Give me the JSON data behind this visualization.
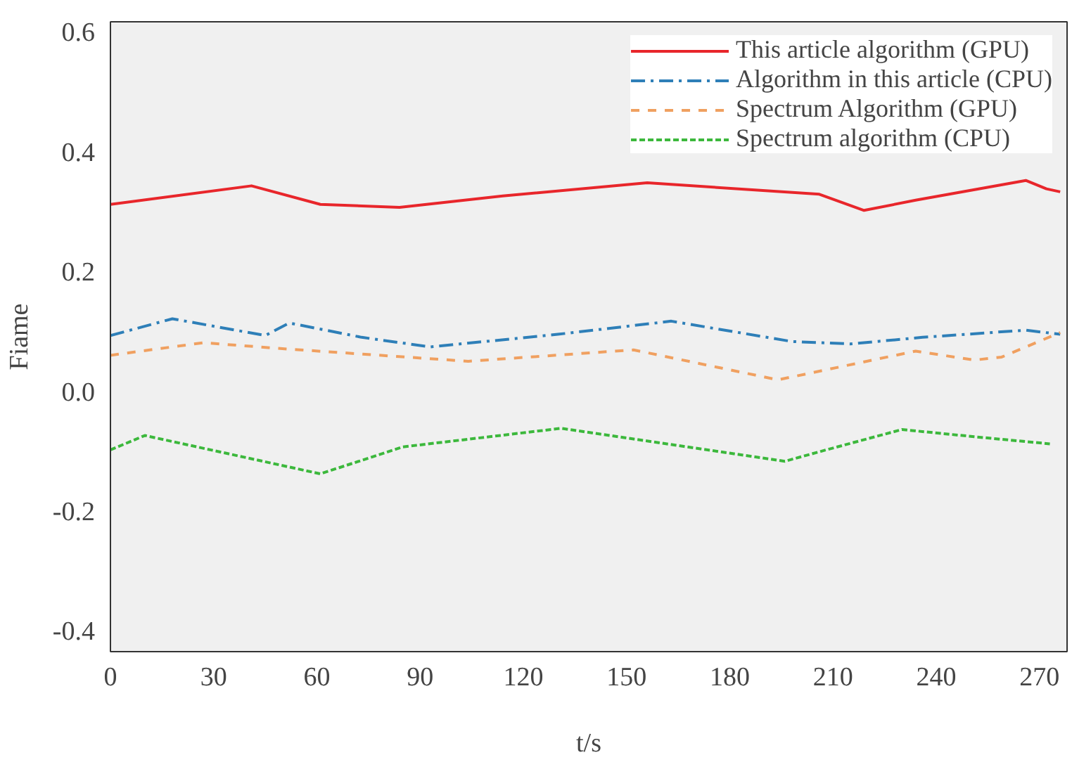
{
  "chart_data": {
    "type": "line",
    "xlabel": "t/s",
    "ylabel": "Fiame",
    "xlim": [
      0,
      278
    ],
    "ylim": [
      -0.435,
      0.617
    ],
    "xticks": [
      0,
      30,
      60,
      90,
      120,
      150,
      180,
      210,
      240,
      270
    ],
    "yticks": [
      {
        "value": 0.6,
        "label": "0.6"
      },
      {
        "value": 0.4,
        "label": "0.4"
      },
      {
        "value": 0.2,
        "label": "0.2"
      },
      {
        "value": 0,
        "label": "0.0"
      },
      {
        "value": -0.2,
        "label": "-0.2"
      },
      {
        "value": -0.4,
        "label": "-0.4"
      }
    ],
    "grid": false,
    "legend": "top right",
    "marker": "none",
    "series": [
      {
        "name": "This article algorithm (GPU)",
        "color": "#e8262b",
        "line_style": "solid",
        "x": [
          0,
          41,
          61,
          84,
          114,
          156,
          206,
          219,
          234,
          266,
          272,
          276
        ],
        "values": [
          0.312,
          0.343,
          0.312,
          0.307,
          0.326,
          0.348,
          0.329,
          0.302,
          0.319,
          0.352,
          0.338,
          0.333
        ]
      },
      {
        "name": "Algorithm in this article (CPU)",
        "color": "#2e7fb8",
        "line_style": "dashdot",
        "x": [
          0,
          18,
          45,
          52,
          73,
          93,
          130,
          163,
          198,
          215,
          236,
          266,
          276
        ],
        "values": [
          0.093,
          0.121,
          0.093,
          0.114,
          0.09,
          0.074,
          0.095,
          0.117,
          0.083,
          0.079,
          0.09,
          0.102,
          0.095
        ]
      },
      {
        "name": "Spectrum Algorithm (GPU)",
        "color": "#f0a060",
        "line_style": "dashed",
        "x": [
          0,
          27,
          50,
          104,
          152,
          194,
          234,
          251,
          259,
          276
        ],
        "values": [
          0.06,
          0.081,
          0.071,
          0.05,
          0.069,
          0.019,
          0.067,
          0.052,
          0.057,
          0.098
        ]
      },
      {
        "name": "Spectrum algorithm (CPU)",
        "color": "#3cb83c",
        "line_style": "dotted",
        "x": [
          0,
          10,
          61,
          85,
          131,
          196,
          208,
          230,
          251,
          273
        ],
        "values": [
          -0.098,
          -0.074,
          -0.138,
          -0.093,
          -0.062,
          -0.117,
          -0.098,
          -0.064,
          -0.076,
          -0.088
        ]
      }
    ]
  }
}
